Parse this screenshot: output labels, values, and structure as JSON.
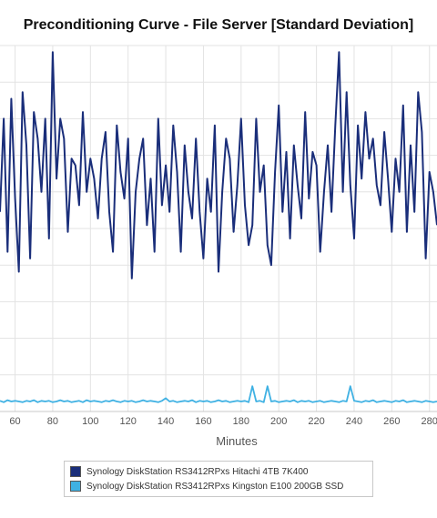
{
  "title": "Preconditioning Curve - File Server [Standard Deviation]",
  "chart_data": {
    "type": "line",
    "title": "Preconditioning Curve - File Server [Standard Deviation]",
    "xlabel": "Minutes",
    "ylabel": "",
    "xlim": [
      52,
      284
    ],
    "ylim": [
      0,
      55
    ],
    "x_ticks": [
      60,
      80,
      100,
      120,
      140,
      160,
      180,
      200,
      220,
      240,
      260,
      280
    ],
    "grid": true,
    "legend_position": "bottom",
    "x": [
      52,
      54,
      56,
      58,
      60,
      62,
      64,
      66,
      68,
      70,
      72,
      74,
      76,
      78,
      80,
      82,
      84,
      86,
      88,
      90,
      92,
      94,
      96,
      98,
      100,
      102,
      104,
      106,
      108,
      110,
      112,
      114,
      116,
      118,
      120,
      122,
      124,
      126,
      128,
      130,
      132,
      134,
      136,
      138,
      140,
      142,
      144,
      146,
      148,
      150,
      152,
      154,
      156,
      158,
      160,
      162,
      164,
      166,
      168,
      170,
      172,
      174,
      176,
      178,
      180,
      182,
      184,
      186,
      188,
      190,
      192,
      194,
      196,
      198,
      200,
      202,
      204,
      206,
      208,
      210,
      212,
      214,
      216,
      218,
      220,
      222,
      224,
      226,
      228,
      230,
      232,
      234,
      236,
      238,
      240,
      242,
      244,
      246,
      248,
      250,
      252,
      254,
      256,
      258,
      260,
      262,
      264,
      266,
      268,
      270,
      272,
      274,
      276,
      278,
      280,
      282,
      284
    ],
    "series": [
      {
        "name": "Synology DiskStation RS3412RPxs Hitachi 4TB 7K400",
        "color": "#1a2e7a",
        "values": [
          30,
          44,
          24,
          47,
          32,
          21,
          48,
          40,
          23,
          45,
          41,
          33,
          44,
          26,
          54,
          35,
          44,
          41,
          27,
          38,
          37,
          31,
          45,
          33,
          38,
          35,
          29,
          38,
          42,
          30,
          24,
          43,
          36,
          32,
          41,
          20,
          33,
          38,
          41,
          28,
          35,
          24,
          44,
          31,
          37,
          30,
          43,
          36,
          24,
          40,
          33,
          29,
          41,
          30,
          23,
          35,
          30,
          43,
          21,
          33,
          41,
          38,
          27,
          34,
          44,
          31,
          25,
          28,
          44,
          33,
          37,
          25,
          22,
          36,
          46,
          30,
          39,
          26,
          40,
          34,
          29,
          45,
          32,
          39,
          37,
          24,
          33,
          40,
          30,
          43,
          54,
          33,
          48,
          34,
          26,
          43,
          35,
          45,
          38,
          41,
          34,
          31,
          42,
          35,
          27,
          38,
          33,
          46,
          27,
          40,
          30,
          48,
          42,
          23,
          36,
          33,
          28
        ]
      },
      {
        "name": "Synology DiskStation RS3412RPxs Kingston E100 200GB SSD",
        "color": "#3fb1e3",
        "values": [
          1.6,
          1.4,
          1.7,
          1.5,
          1.6,
          1.5,
          1.4,
          1.6,
          1.5,
          1.7,
          1.4,
          1.6,
          1.5,
          1.6,
          1.4,
          1.5,
          1.7,
          1.5,
          1.6,
          1.4,
          1.5,
          1.6,
          1.4,
          1.7,
          1.5,
          1.6,
          1.5,
          1.4,
          1.6,
          1.5,
          1.7,
          1.5,
          1.4,
          1.6,
          1.5,
          1.6,
          1.4,
          1.5,
          1.7,
          1.5,
          1.6,
          1.5,
          1.4,
          1.6,
          2.0,
          1.5,
          1.6,
          1.4,
          1.5,
          1.6,
          1.5,
          1.7,
          1.4,
          1.6,
          1.5,
          1.6,
          1.4,
          1.5,
          1.7,
          1.5,
          1.6,
          1.4,
          1.5,
          1.6,
          1.5,
          1.6,
          1.4,
          3.8,
          1.5,
          1.6,
          1.4,
          3.8,
          1.5,
          1.6,
          1.4,
          1.5,
          1.6,
          1.5,
          1.7,
          1.4,
          1.6,
          1.5,
          1.6,
          1.4,
          1.5,
          1.6,
          1.4,
          1.5,
          1.6,
          1.5,
          1.4,
          1.6,
          1.5,
          3.8,
          1.6,
          1.5,
          1.4,
          1.6,
          1.5,
          1.7,
          1.4,
          1.5,
          1.6,
          1.5,
          1.4,
          1.6,
          1.5,
          1.7,
          1.4,
          1.5,
          1.6,
          1.5,
          1.4,
          1.6,
          1.5,
          1.4,
          1.5
        ]
      }
    ]
  }
}
